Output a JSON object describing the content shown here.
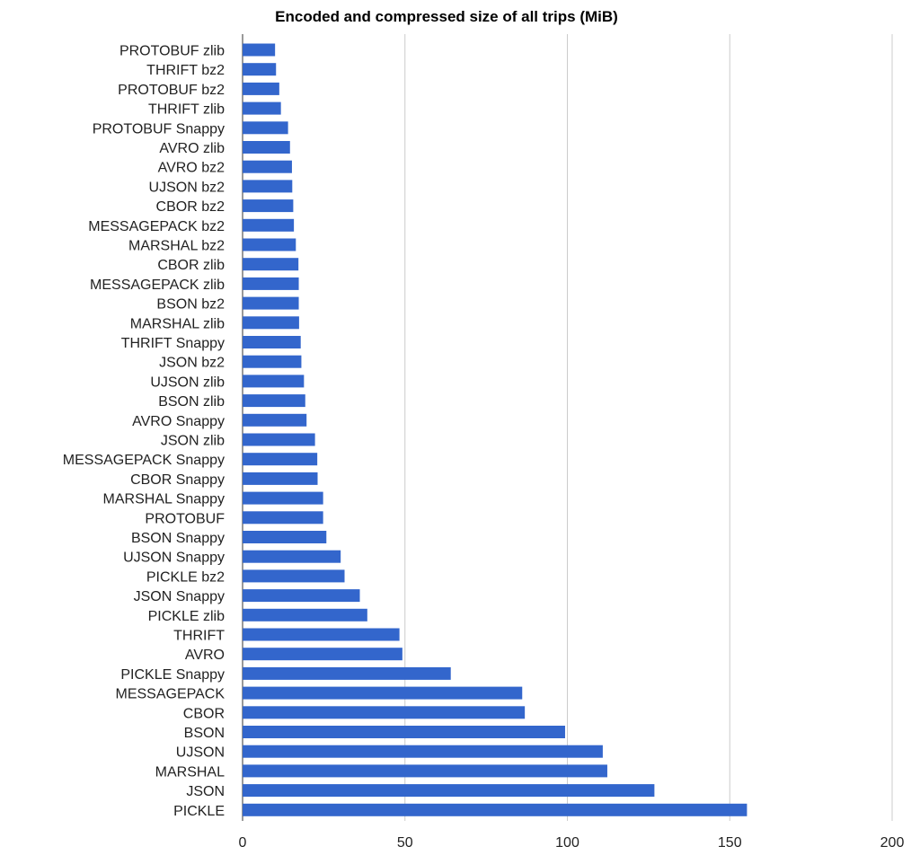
{
  "chart_data": {
    "type": "bar",
    "orientation": "horizontal",
    "title": "Encoded and compressed size of all trips (MiB)",
    "xlabel": "",
    "ylabel": "",
    "xlim": [
      0,
      200
    ],
    "x_ticks": [
      0,
      50,
      100,
      150,
      200
    ],
    "grid": true,
    "legend": "none",
    "bar_color": "#3366cc",
    "categories": [
      "PROTOBUF zlib",
      "THRIFT bz2",
      "PROTOBUF bz2",
      "THRIFT zlib",
      "PROTOBUF Snappy",
      "AVRO zlib",
      "AVRO bz2",
      "UJSON bz2",
      "CBOR bz2",
      "MESSAGEPACK bz2",
      "MARSHAL bz2",
      "CBOR zlib",
      "MESSAGEPACK zlib",
      "BSON bz2",
      "MARSHAL zlib",
      "THRIFT Snappy",
      "JSON bz2",
      "UJSON zlib",
      "BSON zlib",
      "AVRO Snappy",
      "JSON zlib",
      "MESSAGEPACK Snappy",
      "CBOR Snappy",
      "MARSHAL Snappy",
      "PROTOBUF",
      "BSON Snappy",
      "UJSON Snappy",
      "PICKLE bz2",
      "JSON Snappy",
      "PICKLE zlib",
      "THRIFT",
      "AVRO",
      "PICKLE Snappy",
      "MESSAGEPACK",
      "CBOR",
      "BSON",
      "UJSON",
      "MARSHAL",
      "JSON",
      "PICKLE"
    ],
    "values": [
      10,
      10.3,
      11.3,
      11.8,
      14,
      14.6,
      15.2,
      15.3,
      15.6,
      15.8,
      16.4,
      17.2,
      17.3,
      17.3,
      17.4,
      17.9,
      18.1,
      18.9,
      19.3,
      19.7,
      22.3,
      23,
      23.1,
      24.8,
      24.8,
      25.8,
      30.2,
      31.4,
      36.1,
      38.4,
      48.3,
      49.2,
      64.1,
      86.1,
      86.9,
      99.3,
      110.9,
      112.3,
      126.8,
      155.3
    ]
  }
}
